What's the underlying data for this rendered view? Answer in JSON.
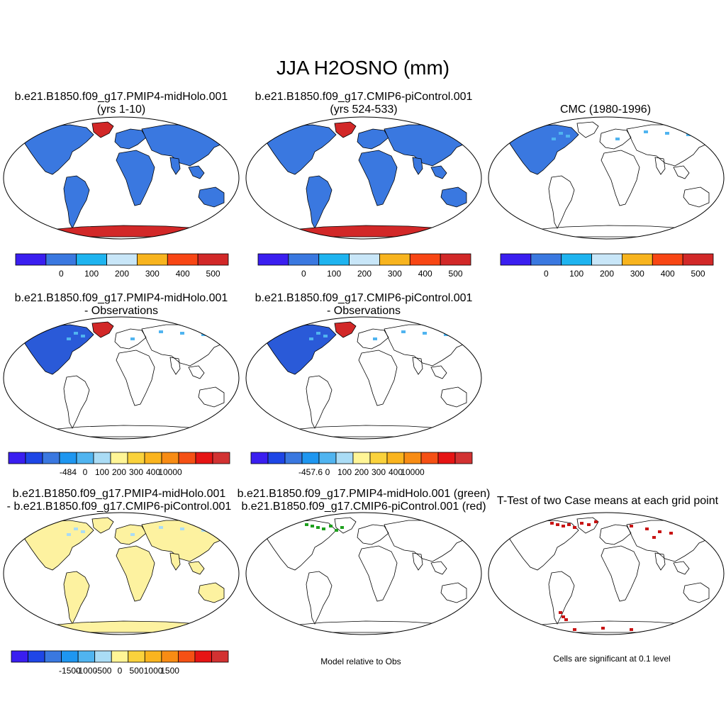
{
  "title": "JJA H2OSNO (mm)",
  "panels": [
    {
      "id": "p1",
      "title1": "b.e21.B1850.f09_g17.PMIP4-midHolo.001",
      "title2": "(yrs 1-10)",
      "fill": "#3a78e0",
      "extra": "polar-red"
    },
    {
      "id": "p2",
      "title1": "b.e21.B1850.f09_g17.CMIP6-piControl.001",
      "title2": "(yrs 524-533)",
      "fill": "#3a78e0",
      "extra": "polar-red"
    },
    {
      "id": "p3",
      "title1": "CMC (1980-1996)",
      "title2": "",
      "fill": "#3a78e0",
      "extra": "na-only"
    },
    {
      "id": "p4",
      "title1": "b.e21.B1850.f09_g17.PMIP4-midHolo.001",
      "title2": "- Observations",
      "fill": "#3a78e0",
      "extra": "na-diff"
    },
    {
      "id": "p5",
      "title1": "b.e21.B1850.f09_g17.CMIP6-piControl.001",
      "title2": "- Observations",
      "fill": "#3a78e0",
      "extra": "na-diff"
    },
    {
      "id": "p6",
      "title1": "b.e21.B1850.f09_g17.PMIP4-midHolo.001",
      "title2": "- b.e21.B1850.f09_g17.CMIP6-piControl.001",
      "fill": "#fdf2a0",
      "extra": "case-diff"
    },
    {
      "id": "p7",
      "title1": "b.e21.B1850.f09_g17.PMIP4-midHolo.001 (green)",
      "title2": "b.e21.B1850.f09_g17.CMIP6-piControl.001 (red)",
      "fill": "none",
      "extra": "green-red"
    },
    {
      "id": "p8",
      "title1": "T-Test of two Case means at each grid point",
      "title2": "",
      "fill": "none",
      "extra": "ttest"
    }
  ],
  "colorbars": [
    {
      "id": "cb1",
      "colors": [
        "#3a1ef0",
        "#3a78e0",
        "#1eb4f0",
        "#c8e6f8",
        "#f8b41e",
        "#f84614",
        "#d22828"
      ],
      "labels": [
        "0",
        "100",
        "200",
        "300",
        "400",
        "500"
      ]
    },
    {
      "id": "cb2",
      "colors": [
        "#3a1ef0",
        "#3a78e0",
        "#1eb4f0",
        "#c8e6f8",
        "#f8b41e",
        "#f84614",
        "#d22828"
      ],
      "labels": [
        "0",
        "100",
        "200",
        "300",
        "400",
        "500"
      ]
    },
    {
      "id": "cb3",
      "colors": [
        "#3a1ef0",
        "#3a78e0",
        "#1eb4f0",
        "#c8e6f8",
        "#f8b41e",
        "#f84614",
        "#d22828"
      ],
      "labels": [
        "0",
        "100",
        "200",
        "300",
        "400",
        "500"
      ]
    },
    {
      "id": "cb4",
      "colors": [
        "#3a1ef0",
        "#1e46e6",
        "#3a78e0",
        "#1e96f0",
        "#50b4f0",
        "#aadcf5",
        "#fff596",
        "#fad23c",
        "#fab41e",
        "#f88c14",
        "#f55014",
        "#e61414",
        "#d23232"
      ],
      "labels": [
        "-484",
        "0",
        "100",
        "200",
        "300",
        "400",
        "10000"
      ]
    },
    {
      "id": "cb5",
      "colors": [
        "#3a1ef0",
        "#1e46e6",
        "#3a78e0",
        "#1e96f0",
        "#50b4f0",
        "#aadcf5",
        "#fff596",
        "#fad23c",
        "#fab41e",
        "#f88c14",
        "#f55014",
        "#e61414",
        "#d23232"
      ],
      "labels": [
        "-457.6",
        "0",
        "100",
        "200",
        "300",
        "400",
        "10000"
      ]
    },
    {
      "id": "cb6",
      "colors": [
        "#3a1ef0",
        "#1e46e6",
        "#3a78e0",
        "#1e96f0",
        "#50b4f0",
        "#aadcf5",
        "#fff596",
        "#fad23c",
        "#fab41e",
        "#f88c14",
        "#f55014",
        "#e61414",
        "#d23232"
      ],
      "labels": [
        "-1500",
        "-1000",
        "-500",
        "0",
        "500",
        "1000",
        "1500"
      ]
    }
  ],
  "notes": {
    "model_relative": "Model relative to Obs",
    "significance": "Cells are significant at 0.1 level"
  }
}
